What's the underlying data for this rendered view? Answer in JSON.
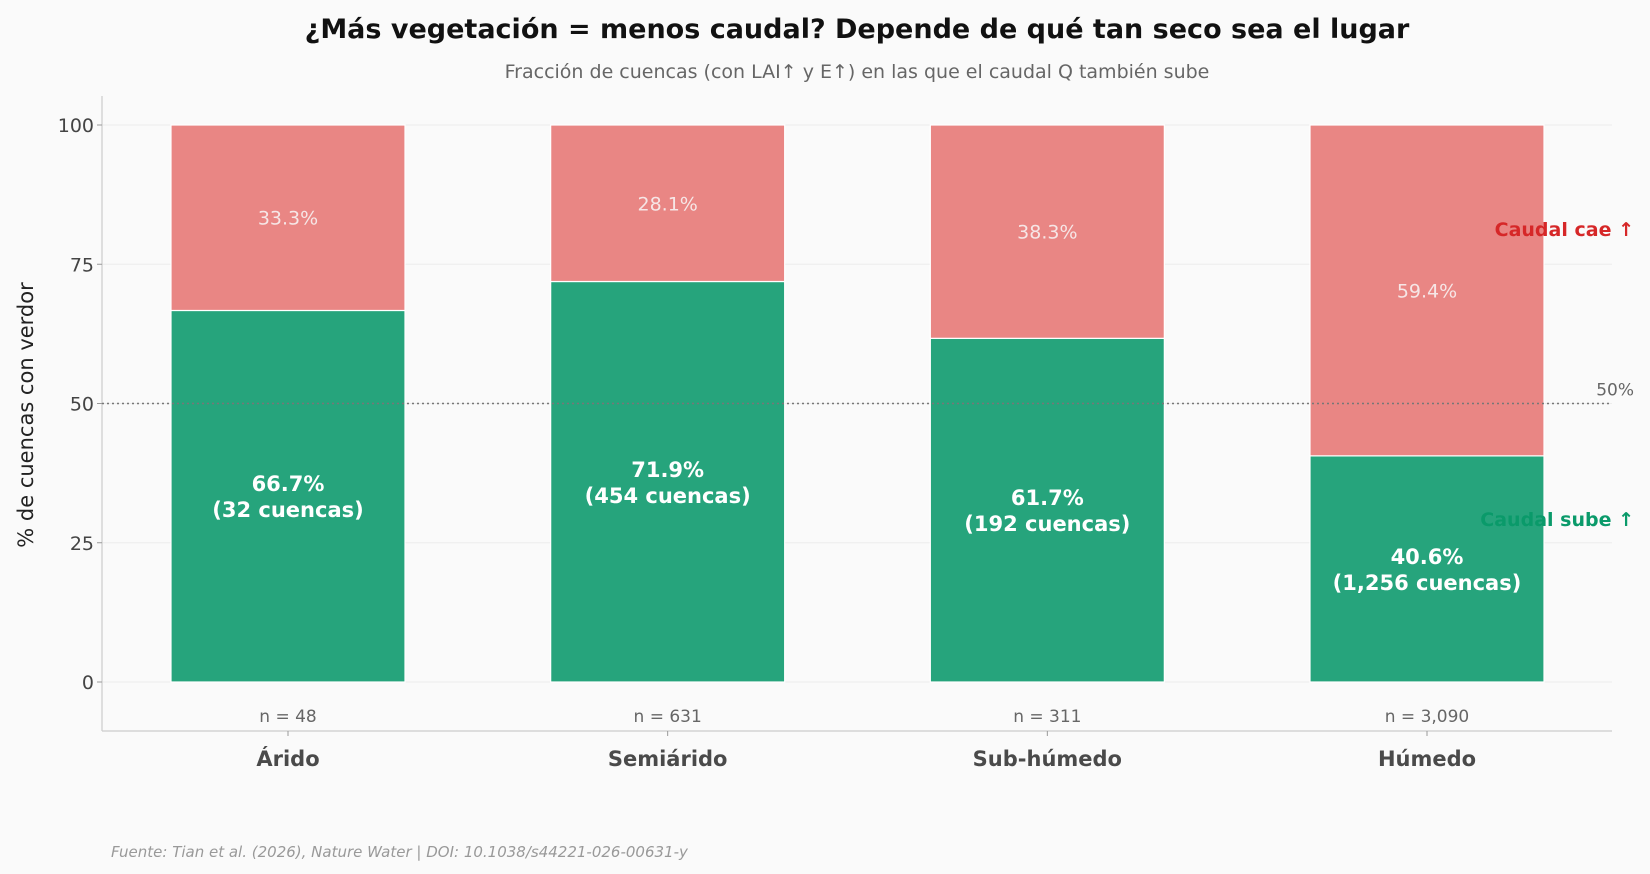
{
  "chart_data": {
    "type": "bar",
    "stacked": true,
    "title": "¿Más vegetación = menos caudal? Depende de qué tan seco sea el lugar",
    "subtitle": "Fracción de cuencas (con LAI↑ y E↑) en las que el caudal Q también sube",
    "ylabel": "% de cuencas con verdor",
    "xlabel": "",
    "ylim": [
      0,
      100
    ],
    "yticks": [
      0,
      25,
      50,
      75,
      100
    ],
    "grid": true,
    "categories": [
      "Árido",
      "Semiárido",
      "Sub-húmedo",
      "Húmedo"
    ],
    "n_labels": [
      "n = 48",
      "n = 631",
      "n = 311",
      "n = 3,090"
    ],
    "series": [
      {
        "key": "up",
        "values": [
          66.7,
          71.9,
          61.7,
          40.6
        ],
        "labels": [
          "66.7%",
          "71.9%",
          "61.7%",
          "40.6%"
        ],
        "counts": [
          "(32 cuencas)",
          "(454 cuencas)",
          "(192 cuencas)",
          "(1,256 cuencas)"
        ],
        "color": "#26a47c"
      },
      {
        "key": "down",
        "values": [
          33.3,
          28.1,
          38.3,
          59.4
        ],
        "labels": [
          "33.3%",
          "28.1%",
          "38.3%",
          "59.4%"
        ],
        "color": "#e98684"
      }
    ],
    "legend": {
      "placement": "right",
      "down": "Caudal cae ↑",
      "up": "Caudal sube ↑",
      "down_color": "#d62728",
      "up_color": "#0a9a6a"
    },
    "reference_line": {
      "value": 50,
      "label": "50%",
      "style": "dotted"
    }
  },
  "source": "Fuente: Tian et al. (2026), Nature Water | DOI: 10.1038/s44221-026-00631-y"
}
